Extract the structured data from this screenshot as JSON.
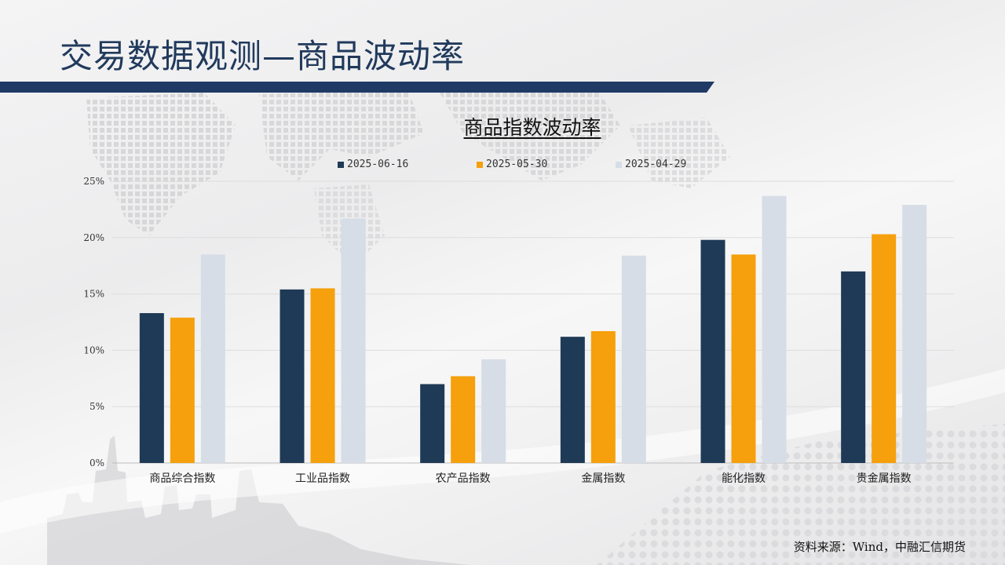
{
  "slide": {
    "title": "交易数据观测—商品波动率",
    "source": "资料来源：Wind，中融汇信期货"
  },
  "colors": {
    "title": "#213a5c",
    "bar_line": "#1f3a64",
    "series": [
      "#1f3a56",
      "#f5a00c",
      "#d6dde6"
    ]
  },
  "chart_data": {
    "type": "bar",
    "title": "商品指数波动率",
    "legend_position": "top",
    "grid": true,
    "categories": [
      "商品综合指数",
      "工业品指数",
      "农产品指数",
      "金属指数",
      "能化指数",
      "贵金属指数"
    ],
    "series": [
      {
        "name": "2025-06-16",
        "values": [
          13.3,
          15.4,
          7.0,
          11.2,
          19.8,
          17.0
        ]
      },
      {
        "name": "2025-05-30",
        "values": [
          12.9,
          15.5,
          7.7,
          11.7,
          18.5,
          20.3
        ]
      },
      {
        "name": "2025-04-29",
        "values": [
          18.5,
          21.7,
          9.2,
          18.4,
          23.7,
          22.9
        ]
      }
    ],
    "ylim": [
      0,
      25
    ],
    "yticks": [
      "0%",
      "5%",
      "10%",
      "15%",
      "20%",
      "25%"
    ]
  }
}
